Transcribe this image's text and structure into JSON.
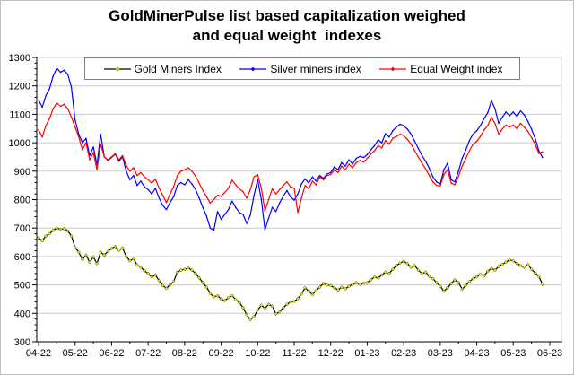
{
  "title": {
    "line1": "GoldMinerPulse list based capitalization weighed",
    "line2": "and equal weight  indexes"
  },
  "chart_data": {
    "type": "line",
    "title": "GoldMinerPulse list based capitalization weighed and equal weight indexes",
    "xlabel": "",
    "ylabel": "",
    "ylim": [
      300,
      1300
    ],
    "y_tick_step": 100,
    "y_minor_step": 20,
    "grid": "horizontal",
    "grid_color": "#cccccc",
    "axis_color": "#000000",
    "legend_position": "top",
    "x_tick_labels": [
      "04-22",
      "05-22",
      "06-22",
      "07-22",
      "08-22",
      "09-22",
      "10-22",
      "11-22",
      "12-22",
      "01-23",
      "02-23",
      "03-23",
      "04-23",
      "05-23",
      "06-23"
    ],
    "x_unit": "months since 04-22 (tick index)",
    "x_start": 0,
    "x_step": 0.1,
    "series": [
      {
        "name": "Gold Miners Index",
        "color": "#000000",
        "marker_color": "#e6e600",
        "marker_stroke": "#4d4d00",
        "marker_size": 1.8,
        "values": [
          665,
          655,
          672,
          680,
          692,
          700,
          695,
          698,
          690,
          672,
          632,
          615,
          590,
          605,
          580,
          598,
          575,
          615,
          605,
          618,
          628,
          635,
          622,
          630,
          600,
          585,
          592,
          570,
          562,
          550,
          540,
          528,
          535,
          515,
          498,
          488,
          500,
          512,
          545,
          552,
          555,
          560,
          552,
          540,
          525,
          508,
          492,
          470,
          458,
          462,
          450,
          445,
          455,
          462,
          448,
          438,
          420,
          395,
          378,
          388,
          412,
          428,
          418,
          432,
          425,
          398,
          405,
          420,
          432,
          440,
          442,
          452,
          468,
          490,
          478,
          466,
          480,
          492,
          505,
          500,
          498,
          490,
          482,
          492,
          486,
          495,
          502,
          508,
          502,
          506,
          508,
          518,
          528,
          524,
          535,
          545,
          540,
          555,
          568,
          577,
          583,
          575,
          562,
          568,
          552,
          540,
          545,
          530,
          522,
          508,
          495,
          478,
          490,
          505,
          518,
          508,
          485,
          498,
          512,
          522,
          528,
          538,
          532,
          548,
          558,
          552,
          565,
          572,
          580,
          588,
          585,
          575,
          568,
          562,
          572,
          555,
          542,
          530,
          502
        ]
      },
      {
        "name": "Silver miners index",
        "color": "#0000ff",
        "marker_size": 0.9,
        "values": [
          1150,
          1125,
          1165,
          1190,
          1235,
          1262,
          1248,
          1255,
          1240,
          1195,
          1080,
          1030,
          1000,
          1015,
          955,
          985,
          922,
          1030,
          950,
          938,
          948,
          960,
          935,
          950,
          900,
          870,
          885,
          850,
          865,
          845,
          835,
          820,
          840,
          805,
          780,
          765,
          790,
          810,
          850,
          860,
          852,
          870,
          855,
          835,
          805,
          772,
          742,
          700,
          692,
          758,
          730,
          748,
          765,
          795,
          772,
          755,
          748,
          716,
          745,
          815,
          870,
          800,
          694,
          735,
          773,
          758,
          788,
          812,
          832,
          810,
          798,
          820,
          855,
          873,
          858,
          880,
          865,
          885,
          875,
          890,
          895,
          915,
          905,
          930,
          918,
          940,
          925,
          945,
          952,
          948,
          958,
          975,
          990,
          1010,
          1000,
          1032,
          1020,
          1042,
          1055,
          1065,
          1060,
          1048,
          1030,
          1005,
          980,
          955,
          935,
          910,
          880,
          862,
          855,
          905,
          928,
          870,
          862,
          900,
          945,
          975,
          1008,
          1030,
          1042,
          1060,
          1085,
          1105,
          1148,
          1120,
          1068,
          1090,
          1108,
          1095,
          1108,
          1092,
          1112,
          1098,
          1075,
          1048,
          1015,
          972,
          948
        ]
      },
      {
        "name": "Equal Weight index",
        "color": "#ff0000",
        "marker_size": 0.9,
        "values": [
          1045,
          1020,
          1060,
          1085,
          1120,
          1140,
          1128,
          1135,
          1120,
          1090,
          1055,
          1020,
          975,
          1000,
          940,
          965,
          905,
          995,
          950,
          940,
          950,
          962,
          940,
          955,
          920,
          900,
          912,
          885,
          895,
          880,
          870,
          858,
          872,
          840,
          815,
          790,
          820,
          845,
          885,
          900,
          905,
          912,
          900,
          882,
          858,
          832,
          810,
          788,
          800,
          815,
          812,
          825,
          840,
          868,
          852,
          838,
          828,
          805,
          835,
          880,
          888,
          840,
          760,
          800,
          838,
          820,
          835,
          850,
          862,
          845,
          840,
          755,
          805,
          850,
          838,
          865,
          852,
          880,
          870,
          885,
          888,
          905,
          895,
          918,
          905,
          925,
          912,
          930,
          938,
          932,
          945,
          960,
          972,
          990,
          982,
          1008,
          995,
          1015,
          1022,
          1030,
          1025,
          1012,
          995,
          972,
          950,
          928,
          908,
          885,
          862,
          850,
          848,
          888,
          905,
          858,
          852,
          882,
          918,
          945,
          972,
          995,
          1005,
          1022,
          1045,
          1060,
          1090,
          1068,
          1030,
          1048,
          1062,
          1055,
          1062,
          1048,
          1068,
          1055,
          1040,
          1018,
          995,
          962,
          968
        ]
      }
    ]
  }
}
